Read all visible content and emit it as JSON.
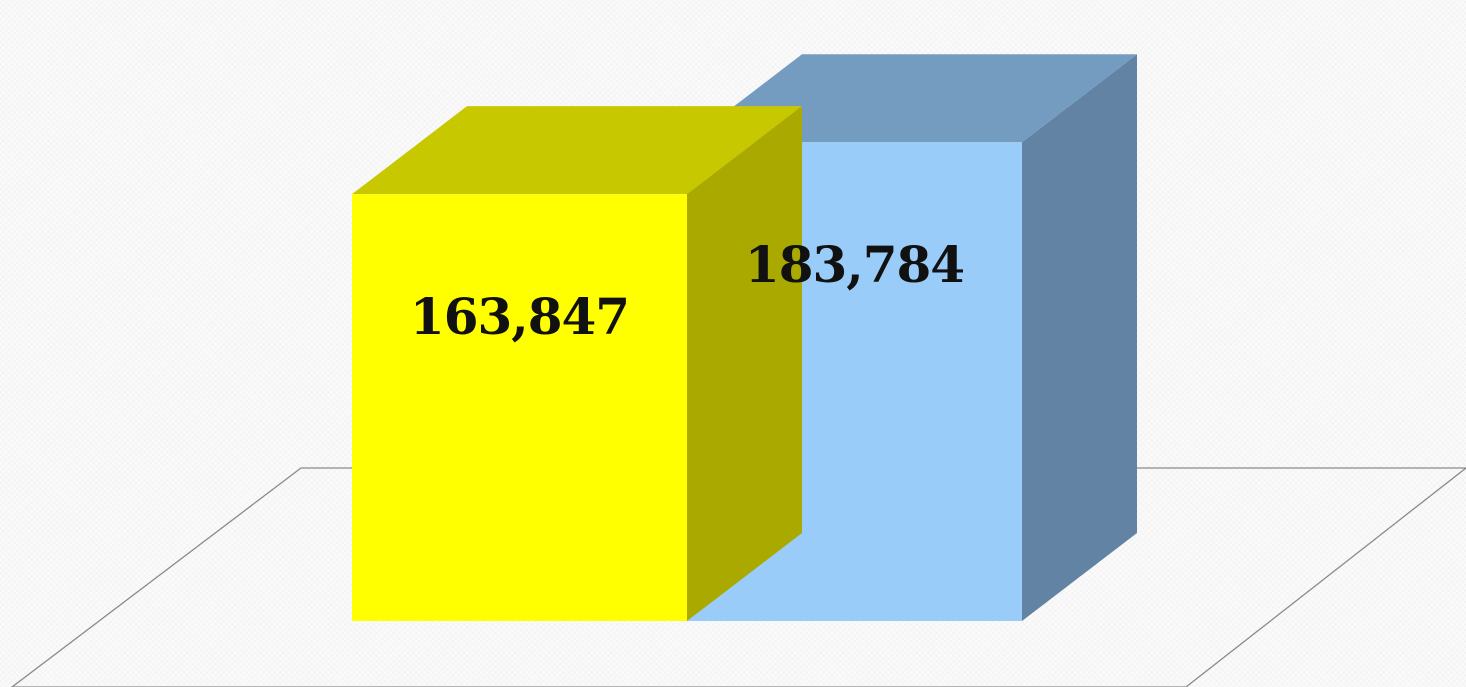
{
  "chart_data": {
    "type": "bar",
    "style": "3d-column",
    "categories": [
      "",
      ""
    ],
    "values": [
      163847,
      183784
    ],
    "data_labels": [
      "163,847",
      "183,784"
    ],
    "ylim": [
      0,
      200000
    ],
    "grid": false,
    "legend": "none",
    "title": "",
    "xlabel": "",
    "ylabel": ""
  },
  "colors": {
    "bars": [
      {
        "front": "#FFFF00",
        "top": "#C8C800",
        "side": "#A9A900"
      },
      {
        "front": "#99CCF8",
        "top": "#749CC0",
        "side": "#6283A3"
      }
    ],
    "floor_stroke": "#8a8a8a",
    "label": "#111111"
  }
}
